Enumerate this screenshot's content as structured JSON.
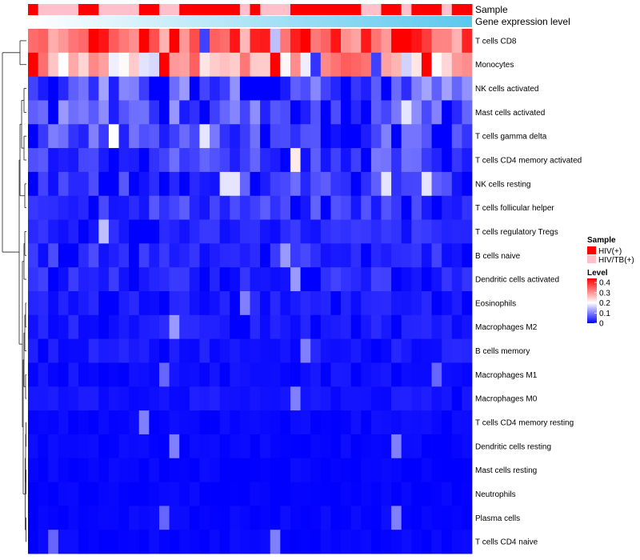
{
  "chart_data": {
    "type": "heatmap",
    "title": "",
    "annotation_rows": [
      "Sample",
      "Gene expression level"
    ],
    "annotation_colors": {
      "HIV(+)": "#ff0000",
      "HIV/TB(+)": "#ffc0cb",
      "gene_gradient_start": "#ffffff",
      "gene_gradient_end": "#5bc8ee"
    },
    "sample_groups": [
      "HIV(+)",
      "HIV/TB(+)",
      "HIV/TB(+)",
      "HIV/TB(+)",
      "HIV/TB(+)",
      "HIV(+)",
      "HIV(+)",
      "HIV/TB(+)",
      "HIV/TB(+)",
      "HIV/TB(+)",
      "HIV/TB(+)",
      "HIV(+)",
      "HIV(+)",
      "HIV/TB(+)",
      "HIV/TB(+)",
      "HIV(+)",
      "HIV(+)",
      "HIV(+)",
      "HIV(+)",
      "HIV(+)",
      "HIV(+)",
      "HIV/TB(+)",
      "HIV(+)",
      "HIV/TB(+)",
      "HIV/TB(+)",
      "HIV/TB(+)",
      "HIV(+)",
      "HIV(+)",
      "HIV(+)",
      "HIV(+)",
      "HIV(+)",
      "HIV(+)",
      "HIV(+)",
      "HIV/TB(+)",
      "HIV/TB(+)",
      "HIV(+)",
      "HIV(+)",
      "HIV/TB(+)",
      "HIV(+)",
      "HIV(+)",
      "HIV(+)",
      "HIV/TB(+)",
      "HIV(+)",
      "HIV(+)"
    ],
    "rows": [
      "T cells CD8",
      "Monocytes",
      "NK cells activated",
      "Mast cells activated",
      "T cells gamma delta",
      "T cells CD4 memory activated",
      "NK cells resting",
      "T cells follicular helper",
      "T cells regulatory  Tregs",
      "B cells naive",
      "Dendritic cells activated",
      "Eosinophils",
      "Macrophages M2",
      "B cells memory",
      "Macrophages M1",
      "Macrophages M0",
      "T cells CD4 memory resting",
      "Dendritic cells resting",
      "Mast cells resting",
      "Neutrophils",
      "Plasma cells",
      "T cells CD4 naive"
    ],
    "row_means": [
      0.34,
      0.26,
      0.08,
      0.07,
      0.06,
      0.055,
      0.05,
      0.045,
      0.03,
      0.035,
      0.03,
      0.02,
      0.02,
      0.018,
      0.012,
      0.015,
      0.008,
      0.006,
      0.004,
      0.003,
      0.006,
      0.005
    ],
    "highlight_cells": [
      [
        0,
        6,
        0.44
      ],
      [
        0,
        7,
        0.42
      ],
      [
        0,
        11,
        0.44
      ],
      [
        0,
        14,
        0.44
      ],
      [
        0,
        20,
        0.42
      ],
      [
        0,
        27,
        0.44
      ],
      [
        0,
        30,
        0.42
      ],
      [
        0,
        36,
        0.44
      ],
      [
        0,
        37,
        0.44
      ],
      [
        0,
        38,
        0.42
      ],
      [
        0,
        17,
        0.05
      ],
      [
        0,
        24,
        0.15
      ],
      [
        1,
        0,
        0.44
      ],
      [
        1,
        13,
        0.44
      ],
      [
        1,
        24,
        0.44
      ],
      [
        1,
        39,
        0.44
      ],
      [
        1,
        3,
        0.2
      ],
      [
        1,
        34,
        0.05
      ],
      [
        1,
        28,
        0.04
      ],
      [
        2,
        2,
        0.0
      ],
      [
        2,
        24,
        0.0
      ],
      [
        2,
        35,
        0.0
      ],
      [
        3,
        17,
        0.0
      ],
      [
        3,
        26,
        0.0
      ],
      [
        3,
        37,
        0.18
      ],
      [
        3,
        41,
        0.0
      ],
      [
        4,
        0,
        0.0
      ],
      [
        4,
        8,
        0.2
      ],
      [
        4,
        17,
        0.18
      ],
      [
        4,
        23,
        0.0
      ],
      [
        4,
        40,
        0.0
      ],
      [
        5,
        8,
        0.0
      ],
      [
        5,
        11,
        0.0
      ],
      [
        5,
        26,
        0.22
      ],
      [
        5,
        41,
        0.0
      ],
      [
        6,
        19,
        0.18
      ],
      [
        6,
        20,
        0.18
      ],
      [
        6,
        22,
        0.0
      ],
      [
        6,
        35,
        0.18
      ],
      [
        6,
        39,
        0.18
      ],
      [
        8,
        7,
        0.15
      ],
      [
        9,
        25,
        0.12
      ],
      [
        10,
        26,
        0.12
      ],
      [
        11,
        21,
        0.1
      ],
      [
        12,
        14,
        0.12
      ],
      [
        13,
        27,
        0.1
      ],
      [
        14,
        13,
        0.08
      ],
      [
        14,
        40,
        0.08
      ],
      [
        15,
        26,
        0.1
      ],
      [
        16,
        11,
        0.1
      ],
      [
        17,
        14,
        0.1
      ],
      [
        17,
        36,
        0.1
      ],
      [
        20,
        13,
        0.08
      ],
      [
        20,
        36,
        0.1
      ],
      [
        21,
        2,
        0.08
      ],
      [
        21,
        24,
        0.1
      ]
    ],
    "color_scale": {
      "min": 0,
      "max": 0.44,
      "low": "#0000ff",
      "mid": "#ffffff",
      "high": "#ff0000",
      "midpoint": 0.2
    },
    "legend": {
      "sample_title": "Sample",
      "sample_items": [
        {
          "label": "HIV(+)",
          "color": "#ff0000"
        },
        {
          "label": "HIV/TB(+)",
          "color": "#ffc0cb"
        }
      ],
      "level_title": "Level",
      "level_ticks": [
        0.4,
        0.3,
        0.2,
        0.1,
        0
      ],
      "level_tick_labels": [
        "0.4",
        "0.3",
        "0.2",
        "0.1",
        "0"
      ]
    },
    "dendrogram": "left",
    "legend_position": "right"
  }
}
